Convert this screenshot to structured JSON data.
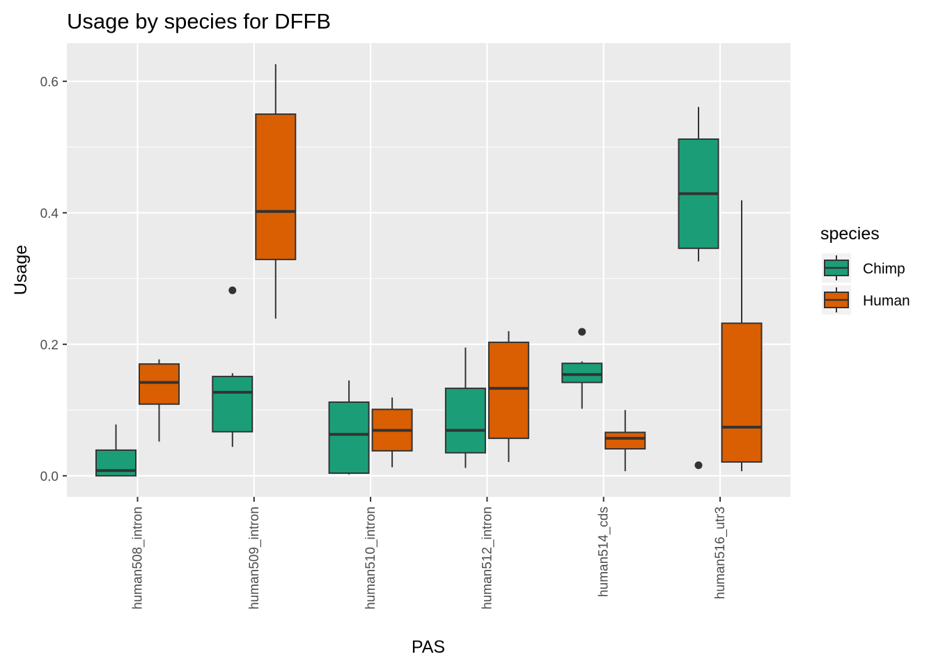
{
  "chart_data": {
    "type": "boxplot",
    "title": "Usage by species for DFFB",
    "xlabel": "PAS",
    "ylabel": "Usage",
    "ylim": [
      -0.032,
      0.658
    ],
    "yticks": [
      "0.0",
      "0.2",
      "0.4",
      "0.6"
    ],
    "ytick_values": [
      0.0,
      0.2,
      0.4,
      0.6
    ],
    "grid": true,
    "legend_position": "right",
    "legend_title": "species",
    "categories": [
      "human508_intron",
      "human509_intron",
      "human510_intron",
      "human512_intron",
      "human514_cds",
      "human516_utr3"
    ],
    "series": [
      {
        "name": "Chimp",
        "color": "#1b9e77",
        "boxes": [
          {
            "whisker_low": 0.0,
            "q1": 0.0,
            "median": 0.008,
            "q3": 0.039,
            "whisker_high": 0.078,
            "outliers": []
          },
          {
            "whisker_low": 0.044,
            "q1": 0.067,
            "median": 0.127,
            "q3": 0.151,
            "whisker_high": 0.156,
            "outliers": [
              0.282
            ]
          },
          {
            "whisker_low": 0.002,
            "q1": 0.004,
            "median": 0.063,
            "q3": 0.112,
            "whisker_high": 0.145,
            "outliers": []
          },
          {
            "whisker_low": 0.012,
            "q1": 0.035,
            "median": 0.069,
            "q3": 0.133,
            "whisker_high": 0.195,
            "outliers": []
          },
          {
            "whisker_low": 0.102,
            "q1": 0.142,
            "median": 0.154,
            "q3": 0.171,
            "whisker_high": 0.174,
            "outliers": [
              0.219
            ]
          },
          {
            "whisker_low": 0.326,
            "q1": 0.346,
            "median": 0.429,
            "q3": 0.512,
            "whisker_high": 0.561,
            "outliers": [
              0.016
            ]
          }
        ]
      },
      {
        "name": "Human",
        "color": "#d95f02",
        "boxes": [
          {
            "whisker_low": 0.052,
            "q1": 0.109,
            "median": 0.142,
            "q3": 0.17,
            "whisker_high": 0.177,
            "outliers": []
          },
          {
            "whisker_low": 0.239,
            "q1": 0.329,
            "median": 0.402,
            "q3": 0.55,
            "whisker_high": 0.626,
            "outliers": []
          },
          {
            "whisker_low": 0.013,
            "q1": 0.038,
            "median": 0.069,
            "q3": 0.101,
            "whisker_high": 0.119,
            "outliers": []
          },
          {
            "whisker_low": 0.021,
            "q1": 0.057,
            "median": 0.133,
            "q3": 0.203,
            "whisker_high": 0.22,
            "outliers": []
          },
          {
            "whisker_low": 0.007,
            "q1": 0.041,
            "median": 0.057,
            "q3": 0.066,
            "whisker_high": 0.1,
            "outliers": []
          },
          {
            "whisker_low": 0.007,
            "q1": 0.021,
            "median": 0.074,
            "q3": 0.232,
            "whisker_high": 0.419,
            "outliers": []
          }
        ]
      }
    ]
  }
}
